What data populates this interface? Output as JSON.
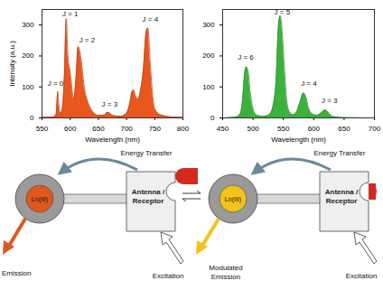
{
  "chart_data": [
    {
      "type": "area",
      "xlabel": "Wavelength (nm)",
      "ylabel": "Intensity (a.u.)",
      "xlim": [
        550,
        800
      ],
      "xticks": [
        550,
        600,
        650,
        700,
        750,
        800
      ],
      "ylim": [
        0,
        350
      ],
      "yticks": [
        0,
        100,
        200,
        300
      ],
      "color": "#e8571e",
      "x": [
        550,
        570,
        575,
        578,
        580,
        583,
        586,
        590,
        593,
        596,
        600,
        603,
        606,
        610,
        614,
        617,
        620,
        625,
        630,
        635,
        640,
        650,
        660,
        666,
        670,
        675,
        690,
        700,
        705,
        710,
        713,
        716,
        720,
        725,
        730,
        735,
        738,
        742,
        746,
        750,
        760,
        780,
        800
      ],
      "values": [
        2,
        3,
        10,
        85,
        40,
        15,
        30,
        150,
        320,
        200,
        150,
        100,
        60,
        120,
        230,
        215,
        180,
        100,
        60,
        35,
        20,
        8,
        8,
        18,
        15,
        8,
        5,
        15,
        40,
        85,
        90,
        70,
        60,
        90,
        160,
        280,
        290,
        180,
        80,
        30,
        10,
        3,
        2
      ],
      "annotations": [
        {
          "text": "J = 0",
          "x": 574,
          "y": 110
        },
        {
          "text": "J = 1",
          "x": 600,
          "y": 335
        },
        {
          "text": "J = 2",
          "x": 630,
          "y": 250
        },
        {
          "text": "J = 3",
          "x": 670,
          "y": 45
        },
        {
          "text": "J = 4",
          "x": 742,
          "y": 318
        }
      ]
    },
    {
      "type": "area",
      "xlabel": "Wavelength (nm)",
      "xlim": [
        450,
        700
      ],
      "xticks": [
        450,
        500,
        550,
        600,
        650,
        700
      ],
      "ylim": [
        0,
        350
      ],
      "yticks": [
        0,
        100,
        200,
        300
      ],
      "color": "#3cb23c",
      "x": [
        450,
        470,
        478,
        483,
        486,
        489,
        492,
        495,
        500,
        505,
        515,
        525,
        532,
        538,
        542,
        545,
        548,
        552,
        556,
        560,
        566,
        572,
        578,
        583,
        587,
        591,
        596,
        605,
        612,
        618,
        622,
        627,
        635,
        650,
        700
      ],
      "values": [
        0,
        2,
        10,
        60,
        140,
        165,
        150,
        90,
        30,
        10,
        5,
        8,
        30,
        120,
        300,
        330,
        280,
        150,
        50,
        20,
        10,
        20,
        55,
        80,
        70,
        35,
        15,
        8,
        15,
        25,
        22,
        10,
        3,
        1,
        0
      ],
      "annotations": [
        {
          "text": "J = 6",
          "x": 488,
          "y": 195
        },
        {
          "text": "J = 5",
          "x": 548,
          "y": 342
        },
        {
          "text": "J = 4",
          "x": 592,
          "y": 110
        },
        {
          "text": "J = 3",
          "x": 626,
          "y": 55
        }
      ]
    }
  ],
  "diagram": {
    "left": {
      "ion": "Ln(III)",
      "receptor": [
        "Antenna /",
        "Receptor"
      ],
      "energy_transfer": "Energy Transfer",
      "emission": [
        "Emission"
      ],
      "excitation": "Excitation",
      "ion_color": "#e0581f"
    },
    "right": {
      "ion": "Ln(III)",
      "receptor": [
        "Antenna /",
        "Receptor"
      ],
      "energy_transfer": "Energy Transfer",
      "emission": [
        "Modulated",
        "Emission"
      ],
      "excitation": "Excitation",
      "ion_color": "#f2c318"
    },
    "guest_color": "#d42a1e"
  }
}
